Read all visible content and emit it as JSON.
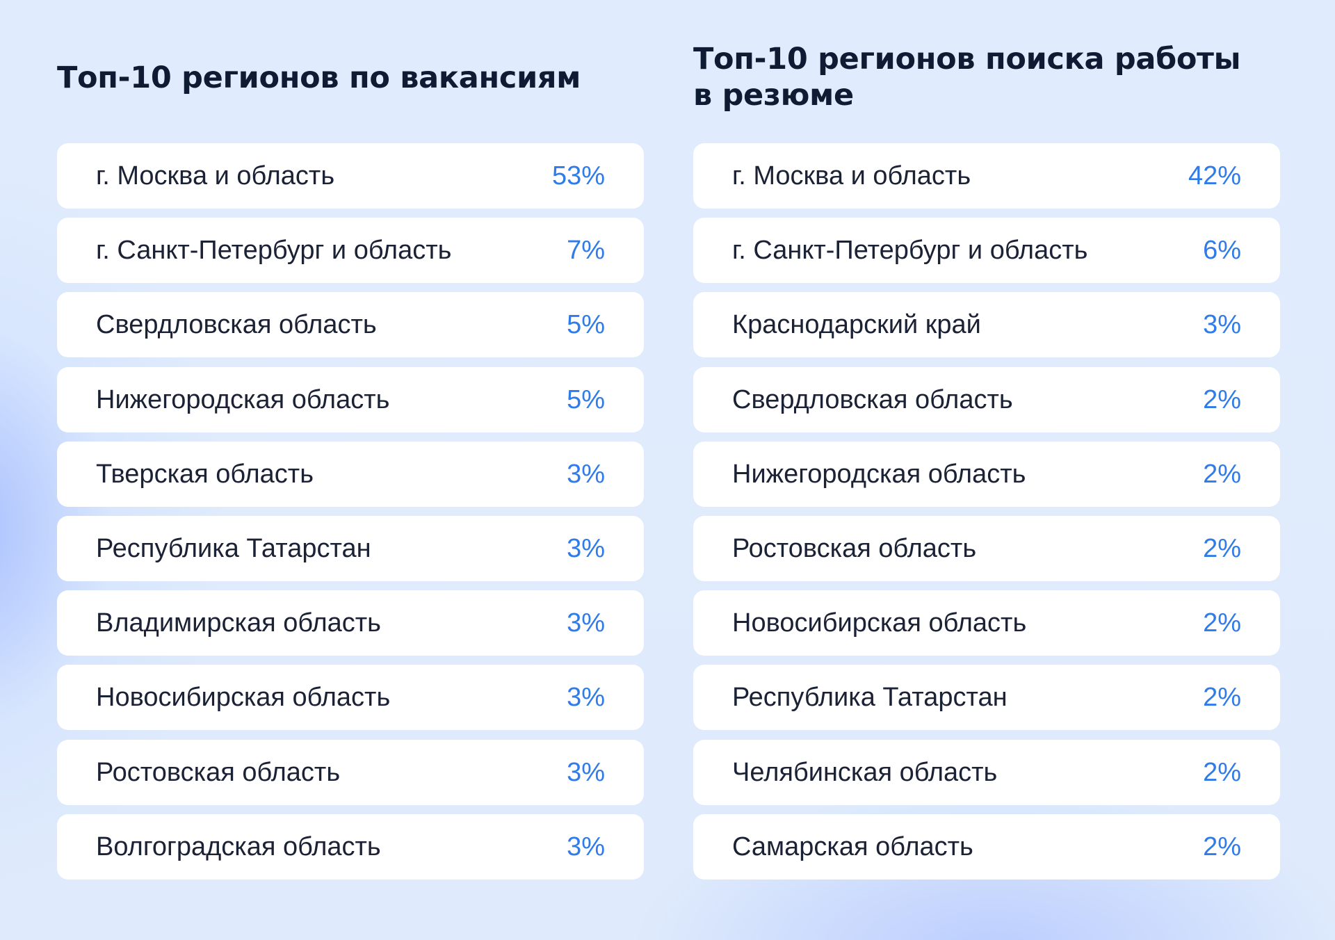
{
  "chart_data": [
    {
      "type": "table",
      "title": "Топ-10 регионов по вакансиям",
      "categories": [
        "г. Москва и область",
        "г. Санкт-Петербург и область",
        "Свердловская область",
        "Нижегородская область",
        "Тверская область",
        "Республика Татарстан",
        "Владимирская область",
        "Новосибирская область",
        "Ростовская область",
        "Волгоградская область"
      ],
      "values": [
        53,
        7,
        5,
        5,
        3,
        3,
        3,
        3,
        3,
        3
      ],
      "value_labels": [
        "53%",
        "7%",
        "5%",
        "5%",
        "3%",
        "3%",
        "3%",
        "3%",
        "3%",
        "3%"
      ],
      "accent_color": "#2f7bea"
    },
    {
      "type": "table",
      "title": "Топ-10 регионов поиска работы в резюме",
      "categories": [
        "г. Москва и область",
        "г. Санкт-Петербург и область",
        "Краснодарский край",
        "Свердловская область",
        "Нижегородская область",
        "Ростовская область",
        "Новосибирская область",
        "Республика Татарстан",
        "Челябинская область",
        "Самарская область"
      ],
      "values": [
        42,
        6,
        3,
        2,
        2,
        2,
        2,
        2,
        2,
        2
      ],
      "value_labels": [
        "42%",
        "6%",
        "3%",
        "2%",
        "2%",
        "2%",
        "2%",
        "2%",
        "2%",
        "2%"
      ],
      "accent_color": "#2f7bea"
    }
  ]
}
